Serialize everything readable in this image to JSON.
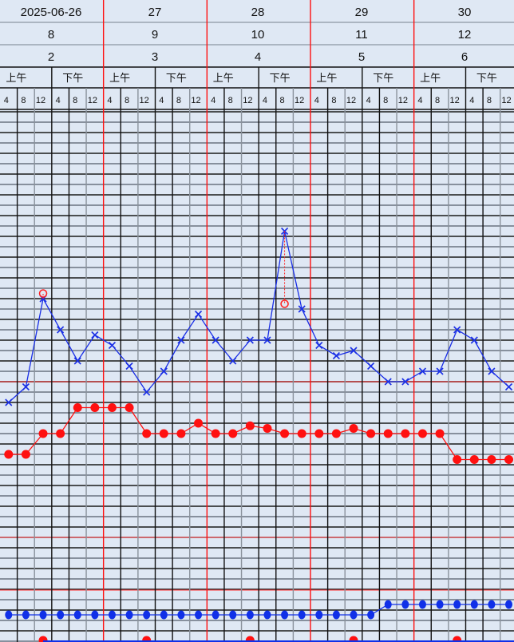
{
  "chart_data": {
    "type": "line",
    "header": {
      "dates": [
        "2025-06-26",
        "27",
        "28",
        "29",
        "30"
      ],
      "row2": [
        "8",
        "9",
        "10",
        "11",
        "12"
      ],
      "row3": [
        "2",
        "3",
        "4",
        "5",
        "6"
      ],
      "half_days": [
        "上午",
        "下午"
      ],
      "hours": [
        "4",
        "8",
        "12",
        "4",
        "8",
        "12"
      ]
    },
    "grid": true,
    "series": [
      {
        "marker": "x",
        "color": "#1a2fe6",
        "values": [
          36.6,
          36.9,
          38.6,
          38.0,
          37.4,
          37.9,
          37.7,
          37.3,
          36.8,
          37.2,
          37.8,
          38.3,
          37.8,
          37.4,
          37.8,
          37.8,
          39.9,
          38.4,
          37.7,
          37.5,
          37.6,
          37.3,
          37.0,
          37.0,
          37.2,
          37.2,
          38.0,
          37.8,
          37.2,
          36.9
        ]
      },
      {
        "marker": "open-circle",
        "color": "#ff2020",
        "points": [
          {
            "index": 2,
            "value": 38.7
          },
          {
            "index": 16,
            "value": 38.5
          }
        ]
      },
      {
        "marker": "filled-circle",
        "color": "#ff1010",
        "values": [
          72,
          72,
          80,
          80,
          90,
          90,
          90,
          90,
          80,
          80,
          80,
          84,
          80,
          80,
          83,
          82,
          80,
          80,
          80,
          80,
          82,
          80,
          80,
          80,
          80,
          80,
          70,
          70,
          70,
          70
        ]
      },
      {
        "marker": "filled-circle",
        "color": "#1030e8",
        "values": [
          18,
          18,
          18,
          18,
          18,
          18,
          18,
          18,
          18,
          18,
          18,
          18,
          18,
          18,
          18,
          18,
          18,
          18,
          18,
          18,
          18,
          18,
          20,
          20,
          20,
          20,
          20,
          20,
          20,
          20
        ]
      },
      {
        "marker": "filled-circle",
        "color": "#ff1010",
        "points": [
          2,
          8,
          14,
          20,
          26
        ]
      }
    ],
    "reference_lines_color": "#ff3030"
  }
}
